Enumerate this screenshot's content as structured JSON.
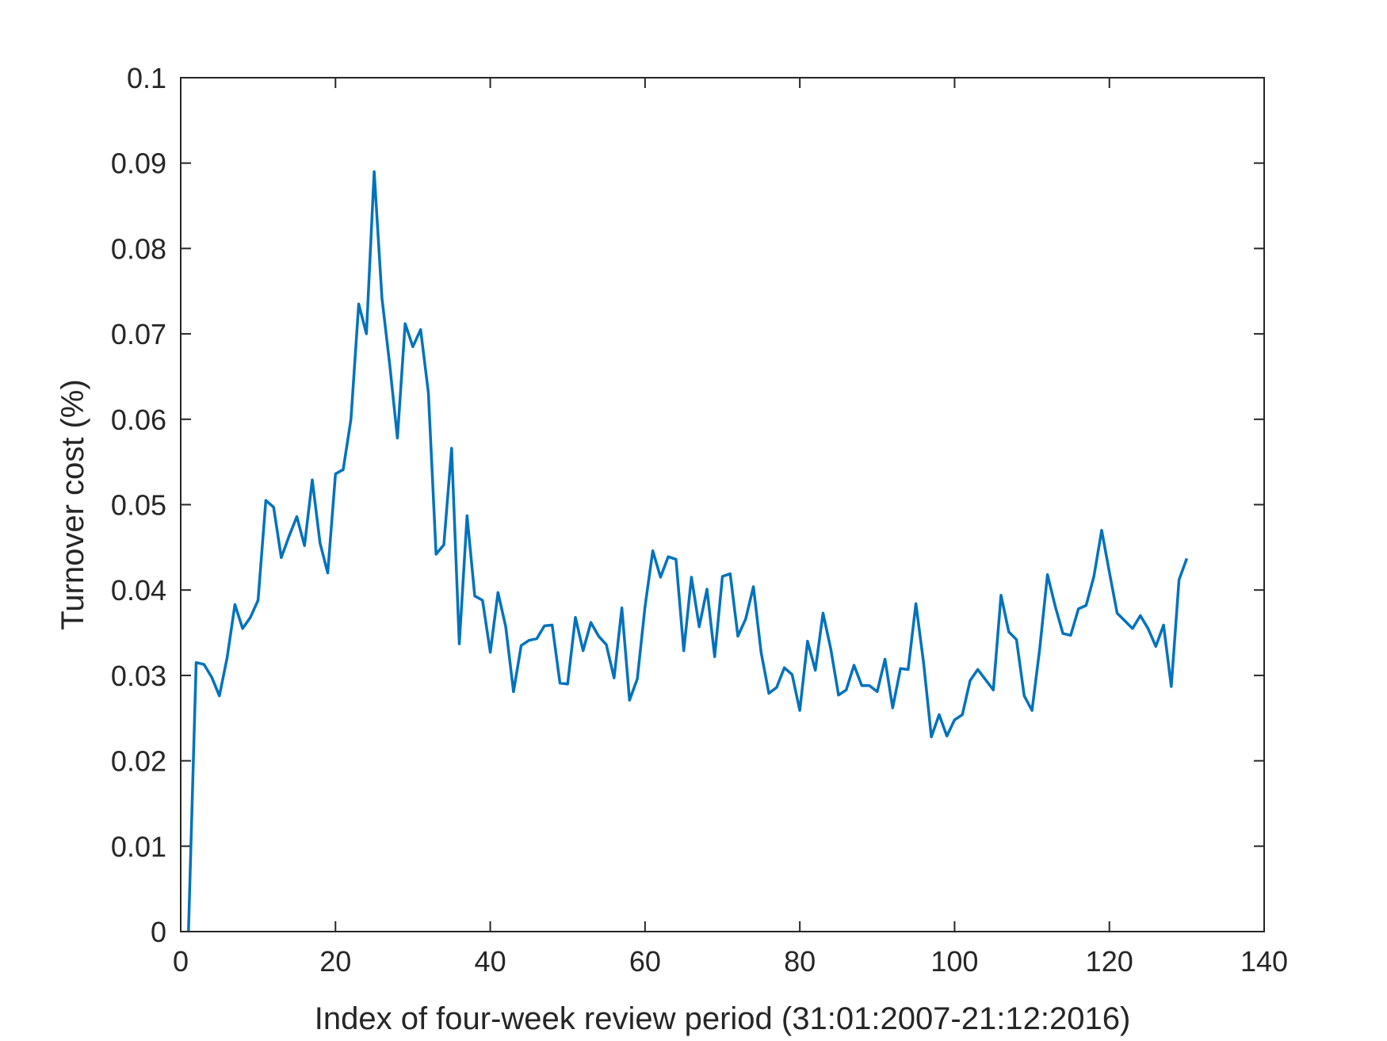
{
  "chart_data": {
    "type": "line",
    "xlabel": "Index of four-week review period (31:01:2007-21:12:2016)",
    "ylabel": "Turnover cost (%)",
    "xlim": [
      0,
      140
    ],
    "ylim": [
      0,
      0.1
    ],
    "xticks": [
      0,
      20,
      40,
      60,
      80,
      100,
      120,
      140
    ],
    "yticks": [
      0,
      0.01,
      0.02,
      0.03,
      0.04,
      0.05,
      0.06,
      0.07,
      0.08,
      0.09,
      0.1
    ],
    "xtick_labels": [
      "0",
      "20",
      "40",
      "60",
      "80",
      "100",
      "120",
      "140"
    ],
    "ytick_labels": [
      "0",
      "0.01",
      "0.02",
      "0.03",
      "0.04",
      "0.05",
      "0.06",
      "0.07",
      "0.08",
      "0.09",
      "0.1"
    ],
    "grid": false,
    "series": [
      {
        "color": "#0072BD",
        "x": [
          1,
          2,
          3,
          4,
          5,
          6,
          7,
          8,
          9,
          10,
          11,
          12,
          13,
          14,
          15,
          16,
          17,
          18,
          19,
          20,
          21,
          22,
          23,
          24,
          25,
          26,
          27,
          28,
          29,
          30,
          31,
          32,
          33,
          34,
          35,
          36,
          37,
          38,
          39,
          40,
          41,
          42,
          43,
          44,
          45,
          46,
          47,
          48,
          49,
          50,
          51,
          52,
          53,
          54,
          55,
          56,
          57,
          58,
          59,
          60,
          61,
          62,
          63,
          64,
          65,
          66,
          67,
          68,
          69,
          70,
          71,
          72,
          73,
          74,
          75,
          76,
          77,
          78,
          79,
          80,
          81,
          82,
          83,
          84,
          85,
          86,
          87,
          88,
          89,
          90,
          91,
          92,
          93,
          94,
          95,
          96,
          97,
          98,
          99,
          100,
          101,
          102,
          103,
          104,
          105,
          106,
          107,
          108,
          109,
          110,
          111,
          112,
          113,
          114,
          115,
          116,
          117,
          118,
          119,
          120,
          121,
          122,
          123,
          124,
          125,
          126,
          127,
          128,
          129,
          130
        ],
        "y": [
          0.0,
          0.0315,
          0.0313,
          0.0298,
          0.0276,
          0.0321,
          0.0383,
          0.0355,
          0.0368,
          0.0388,
          0.0505,
          0.0497,
          0.0438,
          0.0463,
          0.0486,
          0.0452,
          0.0529,
          0.0455,
          0.042,
          0.0536,
          0.0541,
          0.06,
          0.0735,
          0.07,
          0.089,
          0.0742,
          0.0665,
          0.0578,
          0.0712,
          0.0685,
          0.0705,
          0.0631,
          0.0442,
          0.0453,
          0.0566,
          0.0337,
          0.0487,
          0.0393,
          0.0388,
          0.0327,
          0.0397,
          0.0357,
          0.0281,
          0.0335,
          0.0341,
          0.0343,
          0.0358,
          0.0359,
          0.0291,
          0.029,
          0.0368,
          0.0329,
          0.0362,
          0.0346,
          0.0336,
          0.0297,
          0.0379,
          0.0271,
          0.0296,
          0.0381,
          0.0446,
          0.0415,
          0.0439,
          0.0436,
          0.0329,
          0.0415,
          0.0357,
          0.0401,
          0.0322,
          0.0416,
          0.0419,
          0.0346,
          0.0366,
          0.0404,
          0.0327,
          0.0279,
          0.0286,
          0.0309,
          0.0301,
          0.0259,
          0.034,
          0.0306,
          0.0373,
          0.0331,
          0.0277,
          0.0283,
          0.0312,
          0.0288,
          0.0288,
          0.0281,
          0.0319,
          0.0262,
          0.0308,
          0.0307,
          0.0384,
          0.0314,
          0.0228,
          0.0254,
          0.0229,
          0.0248,
          0.0254,
          0.0294,
          0.0307,
          0.0295,
          0.0283,
          0.0394,
          0.0351,
          0.0342,
          0.0276,
          0.0259,
          0.0331,
          0.0418,
          0.0381,
          0.0349,
          0.0347,
          0.0378,
          0.0382,
          0.0416,
          0.047,
          0.0421,
          0.0373,
          0.0364,
          0.0355,
          0.037,
          0.0355,
          0.0334,
          0.0359,
          0.0287,
          0.0412,
          0.0437
        ]
      }
    ]
  }
}
